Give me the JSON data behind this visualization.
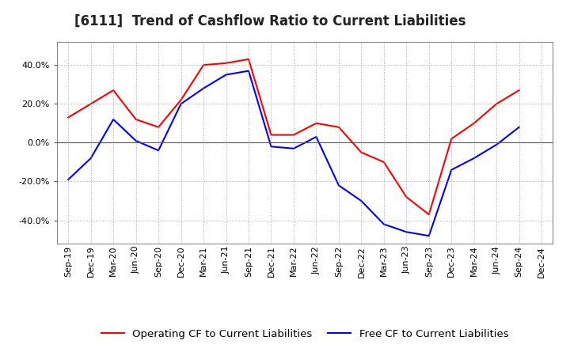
{
  "title": "[6111]  Trend of Cashflow Ratio to Current Liabilities",
  "x_labels": [
    "Sep-19",
    "Dec-19",
    "Mar-20",
    "Jun-20",
    "Sep-20",
    "Dec-20",
    "Mar-21",
    "Jun-21",
    "Sep-21",
    "Dec-21",
    "Mar-22",
    "Jun-22",
    "Sep-22",
    "Dec-22",
    "Mar-23",
    "Jun-23",
    "Sep-23",
    "Dec-23",
    "Mar-24",
    "Jun-24",
    "Sep-24",
    "Dec-24"
  ],
  "operating_cf": [
    0.13,
    0.2,
    0.27,
    0.12,
    0.08,
    0.22,
    0.4,
    0.41,
    0.43,
    0.04,
    0.04,
    0.1,
    0.08,
    -0.05,
    -0.1,
    -0.28,
    -0.37,
    0.02,
    0.1,
    0.2,
    0.27,
    null
  ],
  "free_cf": [
    -0.19,
    -0.08,
    0.12,
    0.01,
    -0.04,
    0.2,
    0.28,
    0.35,
    0.37,
    -0.02,
    -0.03,
    0.03,
    -0.22,
    -0.3,
    -0.42,
    -0.46,
    -0.48,
    -0.14,
    -0.08,
    -0.01,
    0.08,
    null
  ],
  "ylim": [
    -0.52,
    0.52
  ],
  "yticks": [
    -0.4,
    -0.2,
    0.0,
    0.2,
    0.4
  ],
  "operating_color": "#FF0000",
  "free_color": "#0000FF",
  "background_color": "#FFFFFF",
  "grid_color": "#AAAAAA",
  "title_fontsize": 12,
  "legend_fontsize": 9.5,
  "tick_fontsize": 8
}
